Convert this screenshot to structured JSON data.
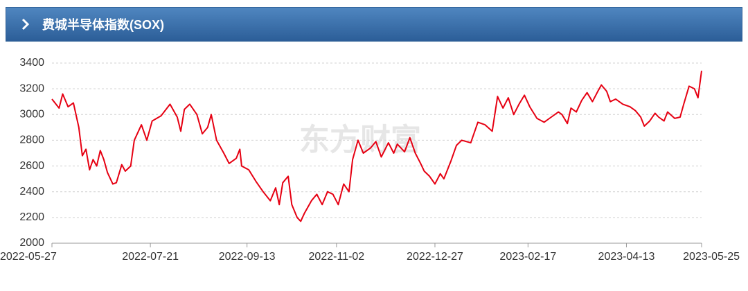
{
  "header": {
    "title": "费城半导体指数(SOX)"
  },
  "chart_data": {
    "type": "line",
    "watermark": "东方财富",
    "x": [
      "2022-05-27",
      "2022-05-31",
      "2022-06-02",
      "2022-06-05",
      "2022-06-08",
      "2022-06-11",
      "2022-06-13",
      "2022-06-15",
      "2022-06-17",
      "2022-06-19",
      "2022-06-21",
      "2022-06-23",
      "2022-06-25",
      "2022-06-27",
      "2022-06-30",
      "2022-07-02",
      "2022-07-05",
      "2022-07-07",
      "2022-07-10",
      "2022-07-12",
      "2022-07-16",
      "2022-07-19",
      "2022-07-22",
      "2022-07-27",
      "2022-08-01",
      "2022-08-05",
      "2022-08-07",
      "2022-08-09",
      "2022-08-12",
      "2022-08-16",
      "2022-08-19",
      "2022-08-22",
      "2022-08-24",
      "2022-08-27",
      "2022-08-31",
      "2022-09-03",
      "2022-09-07",
      "2022-09-09",
      "2022-09-10",
      "2022-09-14",
      "2022-09-18",
      "2022-09-22",
      "2022-09-26",
      "2022-09-29",
      "2022-10-01",
      "2022-10-03",
      "2022-10-06",
      "2022-10-08",
      "2022-10-11",
      "2022-10-13",
      "2022-10-15",
      "2022-10-19",
      "2022-10-22",
      "2022-10-25",
      "2022-10-28",
      "2022-10-31",
      "2022-11-03",
      "2022-11-06",
      "2022-11-09",
      "2022-11-11",
      "2022-11-14",
      "2022-11-17",
      "2022-11-21",
      "2022-11-24",
      "2022-11-27",
      "2022-12-01",
      "2022-12-04",
      "2022-12-06",
      "2022-12-10",
      "2022-12-13",
      "2022-12-16",
      "2022-12-19",
      "2022-12-21",
      "2022-12-24",
      "2022-12-27",
      "2022-12-30",
      "2023-01-01",
      "2023-01-05",
      "2023-01-08",
      "2023-01-11",
      "2023-01-16",
      "2023-01-20",
      "2023-01-24",
      "2023-01-28",
      "2023-01-31",
      "2023-02-03",
      "2023-02-06",
      "2023-02-09",
      "2023-02-12",
      "2023-02-15",
      "2023-02-18",
      "2023-02-22",
      "2023-02-26",
      "2023-03-02",
      "2023-03-06",
      "2023-03-08",
      "2023-03-11",
      "2023-03-13",
      "2023-03-16",
      "2023-03-19",
      "2023-03-22",
      "2023-03-25",
      "2023-03-28",
      "2023-03-30",
      "2023-04-02",
      "2023-04-04",
      "2023-04-07",
      "2023-04-11",
      "2023-04-15",
      "2023-04-18",
      "2023-04-21",
      "2023-04-23",
      "2023-04-26",
      "2023-04-29",
      "2023-05-01",
      "2023-05-04",
      "2023-05-06",
      "2023-05-10",
      "2023-05-13",
      "2023-05-15",
      "2023-05-18",
      "2023-05-21",
      "2023-05-23",
      "2023-05-25"
    ],
    "series": [
      {
        "color": "#e60012",
        "values": [
          3120,
          3050,
          3160,
          3060,
          3090,
          2900,
          2680,
          2730,
          2570,
          2650,
          2600,
          2720,
          2650,
          2550,
          2460,
          2470,
          2610,
          2560,
          2600,
          2800,
          2920,
          2800,
          2950,
          2990,
          3080,
          2980,
          2870,
          3040,
          3080,
          3000,
          2850,
          2900,
          3000,
          2800,
          2700,
          2620,
          2660,
          2730,
          2600,
          2570,
          2480,
          2400,
          2330,
          2430,
          2300,
          2470,
          2520,
          2300,
          2200,
          2170,
          2230,
          2330,
          2380,
          2300,
          2400,
          2380,
          2300,
          2460,
          2400,
          2650,
          2800,
          2700,
          2740,
          2790,
          2670,
          2780,
          2700,
          2770,
          2710,
          2820,
          2700,
          2620,
          2560,
          2520,
          2460,
          2540,
          2500,
          2640,
          2760,
          2800,
          2780,
          2940,
          2920,
          2870,
          3140,
          3050,
          3130,
          3000,
          3080,
          3150,
          3060,
          2970,
          2940,
          2980,
          3020,
          3000,
          2930,
          3050,
          3020,
          3110,
          3170,
          3100,
          3180,
          3230,
          3180,
          3100,
          3120,
          3080,
          3060,
          3030,
          2980,
          2910,
          2950,
          3010,
          2980,
          2950,
          3020,
          2970,
          2980,
          3080,
          3220,
          3200,
          3130,
          3340
        ]
      }
    ],
    "xlim": [
      "2022-05-27",
      "2023-05-25"
    ],
    "xticks": [
      "2022-05-27",
      "2022-07-21",
      "2022-09-13",
      "2022-11-02",
      "2022-12-27",
      "2023-02-17",
      "2023-04-13",
      "2023-05-25"
    ],
    "ylim": [
      2000,
      3400
    ],
    "yticks": [
      2000,
      2200,
      2400,
      2600,
      2800,
      3000,
      3200,
      3400
    ],
    "grid": true
  }
}
